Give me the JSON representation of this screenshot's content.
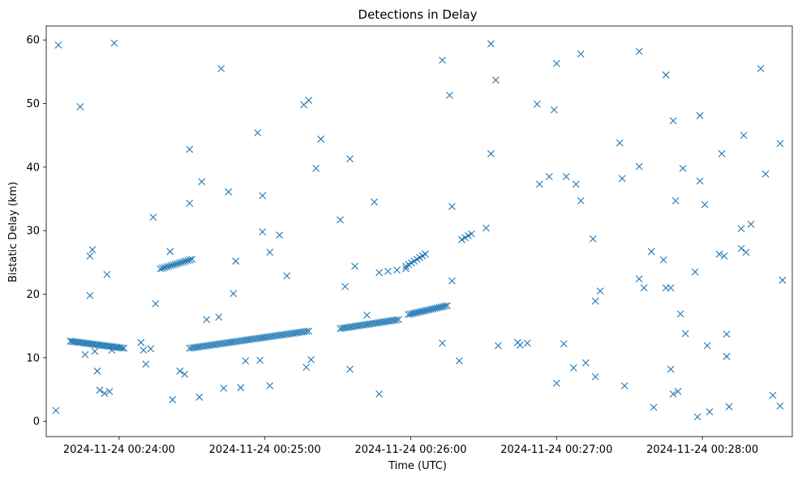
{
  "chart_data": {
    "type": "scatter",
    "title": "Detections in Delay",
    "xlabel": "Time (UTC)",
    "ylabel": "Bistatic Delay (km)",
    "x_tick_labels": [
      "2024-11-24 00:24:00",
      "2024-11-24 00:25:00",
      "2024-11-24 00:26:00",
      "2024-11-24 00:27:00",
      "2024-11-24 00:28:00"
    ],
    "x_tick_values": [
      "00:24:00",
      "00:25:00",
      "00:26:00",
      "00:27:00",
      "00:28:00"
    ],
    "y_ticks": [
      0,
      10,
      20,
      30,
      40,
      50,
      60
    ],
    "xlim": [
      "00:23:30",
      "00:28:37"
    ],
    "ylim": [
      -2.4,
      62.2
    ],
    "grid": false,
    "legend": "none",
    "marker": "x",
    "color": "#1f77b4",
    "x_format": "time_utc_hh:mm:ss",
    "trails": [
      {
        "x_start": "00:23:40",
        "x_end": "00:24:02",
        "y_start": 12.6,
        "y_end": 11.5,
        "points": 30
      },
      {
        "x_start": "00:24:17",
        "x_end": "00:24:30",
        "y_start": 24.0,
        "y_end": 25.5,
        "points": 16
      },
      {
        "x_start": "00:24:29",
        "x_end": "00:25:18",
        "y_start": 11.5,
        "y_end": 14.2,
        "points": 55
      },
      {
        "x_start": "00:25:31",
        "x_end": "00:25:55",
        "y_start": 14.6,
        "y_end": 16.0,
        "points": 28
      },
      {
        "x_start": "00:25:47",
        "x_end": "00:25:58",
        "y_start": 23.4,
        "y_end": 24.0,
        "points": 4
      },
      {
        "x_start": "00:25:58",
        "x_end": "00:26:06",
        "y_start": 24.4,
        "y_end": 26.3,
        "points": 8
      },
      {
        "x_start": "00:25:59",
        "x_end": "00:26:15",
        "y_start": 16.8,
        "y_end": 18.2,
        "points": 20
      },
      {
        "x_start": "00:26:21",
        "x_end": "00:26:25",
        "y_start": 28.6,
        "y_end": 29.5,
        "points": 4
      }
    ],
    "points": [
      [
        "00:23:34",
        1.7
      ],
      [
        "00:23:35",
        59.2
      ],
      [
        "00:23:40",
        12.6
      ],
      [
        "00:23:44",
        49.5
      ],
      [
        "00:23:46",
        10.5
      ],
      [
        "00:23:48",
        19.8
      ],
      [
        "00:23:48",
        26.0
      ],
      [
        "00:23:49",
        27.0
      ],
      [
        "00:23:50",
        11.0
      ],
      [
        "00:23:51",
        7.9
      ],
      [
        "00:23:52",
        4.9
      ],
      [
        "00:23:54",
        4.4
      ],
      [
        "00:23:55",
        23.1
      ],
      [
        "00:23:56",
        4.7
      ],
      [
        "00:23:57",
        11.2
      ],
      [
        "00:23:58",
        59.5
      ],
      [
        "00:24:09",
        12.4
      ],
      [
        "00:24:10",
        11.2
      ],
      [
        "00:24:11",
        9.0
      ],
      [
        "00:24:13",
        11.4
      ],
      [
        "00:24:14",
        32.1
      ],
      [
        "00:24:15",
        18.5
      ],
      [
        "00:24:21",
        26.7
      ],
      [
        "00:24:22",
        3.4
      ],
      [
        "00:24:25",
        7.9
      ],
      [
        "00:24:27",
        7.4
      ],
      [
        "00:24:29",
        34.3
      ],
      [
        "00:24:29",
        42.8
      ],
      [
        "00:24:33",
        3.8
      ],
      [
        "00:24:34",
        37.7
      ],
      [
        "00:24:36",
        16.0
      ],
      [
        "00:24:41",
        16.4
      ],
      [
        "00:24:42",
        55.5
      ],
      [
        "00:24:43",
        5.2
      ],
      [
        "00:24:45",
        36.1
      ],
      [
        "00:24:47",
        20.1
      ],
      [
        "00:24:48",
        25.2
      ],
      [
        "00:24:50",
        5.3
      ],
      [
        "00:24:52",
        9.5
      ],
      [
        "00:24:57",
        45.4
      ],
      [
        "00:24:58",
        9.6
      ],
      [
        "00:24:59",
        29.8
      ],
      [
        "00:24:59",
        35.5
      ],
      [
        "00:25:02",
        26.6
      ],
      [
        "00:25:02",
        5.6
      ],
      [
        "00:25:06",
        29.3
      ],
      [
        "00:25:09",
        22.9
      ],
      [
        "00:25:16",
        49.8
      ],
      [
        "00:25:17",
        8.5
      ],
      [
        "00:25:18",
        50.5
      ],
      [
        "00:25:19",
        9.7
      ],
      [
        "00:25:21",
        39.8
      ],
      [
        "00:25:23",
        44.4
      ],
      [
        "00:25:31",
        31.7
      ],
      [
        "00:25:33",
        21.2
      ],
      [
        "00:25:35",
        8.2
      ],
      [
        "00:25:35",
        41.3
      ],
      [
        "00:25:37",
        24.4
      ],
      [
        "00:25:42",
        16.7
      ],
      [
        "00:25:45",
        34.5
      ],
      [
        "00:25:47",
        4.3
      ],
      [
        "00:26:13",
        56.8
      ],
      [
        "00:26:13",
        12.3
      ],
      [
        "00:26:16",
        51.3
      ],
      [
        "00:26:17",
        22.1
      ],
      [
        "00:26:17",
        33.8
      ],
      [
        "00:26:20",
        9.5
      ],
      [
        "00:26:31",
        30.4
      ],
      [
        "00:26:33",
        59.4
      ],
      [
        "00:26:33",
        42.1
      ],
      [
        "00:26:35",
        53.7
      ],
      [
        "00:26:36",
        11.9
      ],
      [
        "00:26:44",
        12.4
      ],
      [
        "00:26:45",
        12.0
      ],
      [
        "00:26:48",
        12.3
      ],
      [
        "00:26:52",
        49.9
      ],
      [
        "00:26:53",
        37.3
      ],
      [
        "00:26:57",
        38.5
      ],
      [
        "00:26:59",
        49.0
      ],
      [
        "00:27:00",
        56.3
      ],
      [
        "00:27:00",
        6.0
      ],
      [
        "00:27:03",
        12.2
      ],
      [
        "00:27:04",
        38.5
      ],
      [
        "00:27:07",
        8.4
      ],
      [
        "00:27:08",
        37.3
      ],
      [
        "00:27:10",
        57.8
      ],
      [
        "00:27:10",
        34.7
      ],
      [
        "00:27:12",
        9.2
      ],
      [
        "00:27:15",
        28.7
      ],
      [
        "00:27:16",
        7.0
      ],
      [
        "00:27:16",
        18.9
      ],
      [
        "00:27:18",
        20.5
      ],
      [
        "00:27:26",
        43.8
      ],
      [
        "00:27:27",
        38.2
      ],
      [
        "00:27:28",
        5.6
      ],
      [
        "00:27:34",
        58.2
      ],
      [
        "00:27:34",
        40.1
      ],
      [
        "00:27:34",
        22.4
      ],
      [
        "00:27:36",
        21.0
      ],
      [
        "00:27:39",
        26.7
      ],
      [
        "00:27:40",
        2.2
      ],
      [
        "00:27:44",
        25.4
      ],
      [
        "00:27:45",
        54.5
      ],
      [
        "00:27:45",
        21.0
      ],
      [
        "00:27:47",
        21.0
      ],
      [
        "00:27:47",
        8.2
      ],
      [
        "00:27:48",
        4.3
      ],
      [
        "00:27:48",
        47.3
      ],
      [
        "00:27:49",
        34.7
      ],
      [
        "00:27:50",
        4.7
      ],
      [
        "00:27:51",
        16.9
      ],
      [
        "00:27:52",
        39.8
      ],
      [
        "00:27:53",
        13.8
      ],
      [
        "00:27:57",
        23.5
      ],
      [
        "00:27:58",
        0.7
      ],
      [
        "00:27:59",
        37.8
      ],
      [
        "00:27:59",
        48.1
      ],
      [
        "00:28:01",
        34.1
      ],
      [
        "00:28:02",
        11.9
      ],
      [
        "00:28:03",
        1.5
      ],
      [
        "00:28:07",
        26.3
      ],
      [
        "00:28:08",
        42.1
      ],
      [
        "00:28:09",
        26.0
      ],
      [
        "00:28:10",
        13.7
      ],
      [
        "00:28:10",
        10.2
      ],
      [
        "00:28:11",
        2.3
      ],
      [
        "00:28:16",
        30.3
      ],
      [
        "00:28:16",
        27.2
      ],
      [
        "00:28:17",
        45.0
      ],
      [
        "00:28:18",
        26.6
      ],
      [
        "00:28:20",
        31.0
      ],
      [
        "00:28:24",
        55.5
      ],
      [
        "00:28:26",
        38.9
      ],
      [
        "00:28:29",
        4.1
      ],
      [
        "00:28:32",
        2.4
      ],
      [
        "00:28:32",
        43.7
      ],
      [
        "00:28:33",
        22.2
      ]
    ]
  }
}
